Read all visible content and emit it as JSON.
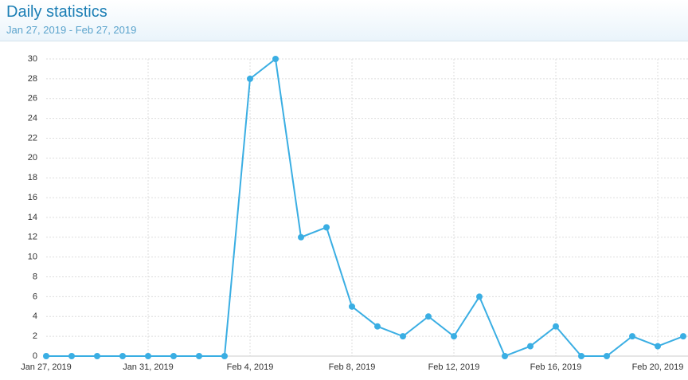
{
  "header": {
    "title": "Daily statistics",
    "subtitle": "Jan 27, 2019 - Feb 27, 2019"
  },
  "chart_data": {
    "type": "line",
    "categories": [
      "Jan 27, 2019",
      null,
      null,
      null,
      "Jan 31, 2019",
      null,
      null,
      null,
      "Feb 4, 2019",
      null,
      null,
      null,
      "Feb 8, 2019",
      null,
      null,
      null,
      "Feb 12, 2019",
      null,
      null,
      null,
      "Feb 16, 2019",
      null,
      null,
      null,
      "Feb 20, 2019",
      null
    ],
    "values": [
      0,
      0,
      0,
      0,
      0,
      0,
      0,
      0,
      28,
      30,
      12,
      13,
      5,
      3,
      2,
      4,
      2,
      6,
      0,
      1,
      3,
      0,
      0,
      2,
      1,
      2
    ],
    "color": "#3aaee3",
    "ylim": [
      0,
      30
    ],
    "yticks": [
      0,
      2,
      4,
      6,
      8,
      10,
      12,
      14,
      16,
      18,
      20,
      22,
      24,
      26,
      28,
      30
    ],
    "grid": true
  }
}
